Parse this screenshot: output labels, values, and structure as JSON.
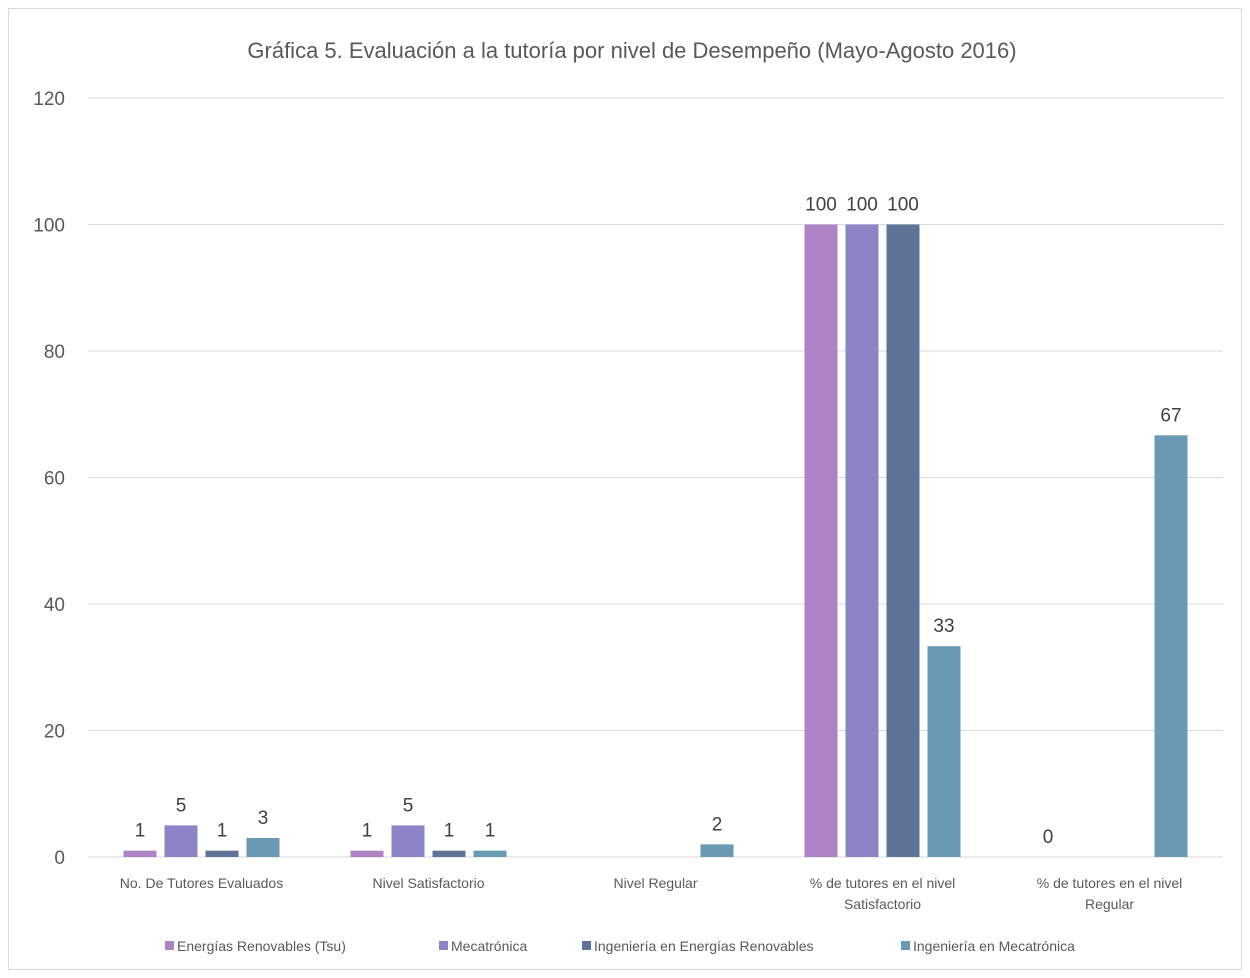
{
  "chart_data": {
    "type": "bar",
    "title": "Gráfica 5. Evaluación a la tutoría por nivel de Desempeño (Mayo-Agosto 2016)",
    "categories": [
      [
        "No. De Tutores Evaluados"
      ],
      [
        "Nivel Satisfactorio"
      ],
      [
        "Nivel Regular"
      ],
      [
        "% de tutores en el nivel",
        "Satisfactorio"
      ],
      [
        "% de tutores en el nivel",
        "Regular"
      ]
    ],
    "ylim": [
      0,
      120
    ],
    "yticks": [
      "0",
      "20",
      "40",
      "60",
      "80",
      "100",
      "120"
    ],
    "grid": true,
    "legend_position": "bottom",
    "series": [
      {
        "name": "Energías  Renovables  (Tsu)",
        "color": "#ae83c5",
        "values": [
          1,
          1,
          null,
          100,
          0
        ],
        "labels": [
          "1",
          "1",
          "",
          "100",
          "0"
        ]
      },
      {
        "name": "Mecatrónica",
        "color": "#8b85c8",
        "values": [
          5,
          5,
          null,
          100,
          null
        ],
        "labels": [
          "5",
          "5",
          "",
          "100",
          ""
        ]
      },
      {
        "name": "Ingeniería en Energías Renovables",
        "color": "#5f7397",
        "values": [
          1,
          1,
          null,
          100,
          null
        ],
        "labels": [
          "1",
          "1",
          "",
          "100",
          ""
        ]
      },
      {
        "name": "Ingeniería en Mecatrónica",
        "color": "#6a9ab3",
        "values": [
          3,
          1,
          2,
          33.33,
          66.67
        ],
        "labels": [
          "3",
          "1",
          "2",
          "33",
          "67"
        ]
      }
    ]
  }
}
